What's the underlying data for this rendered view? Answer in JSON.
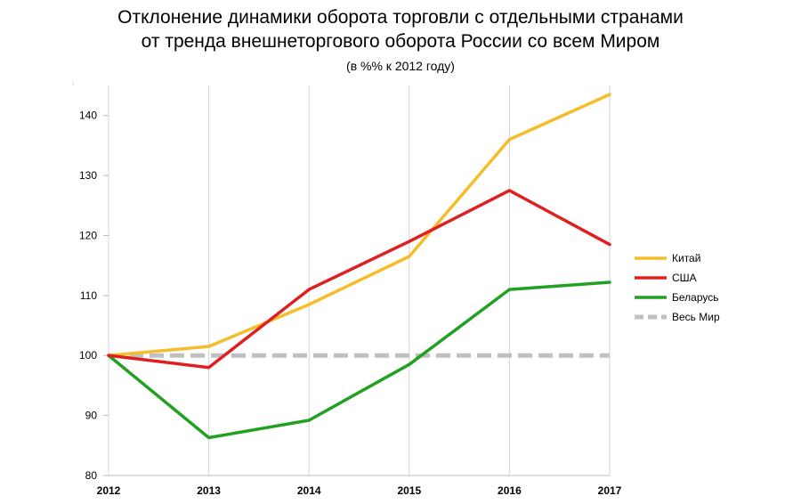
{
  "chart_data": {
    "type": "line",
    "title_line1": "Отклонение динамики оборота торговли с отдельными странами",
    "title_line2": "от тренда внешнеторгового оборота России со всем Миром",
    "subtitle": "(в %% к 2012 году)",
    "x": [
      "2012",
      "2013",
      "2014",
      "2015",
      "2016",
      "2017"
    ],
    "ylim": [
      80,
      145
    ],
    "yticks": [
      80,
      90,
      100,
      110,
      120,
      130,
      140
    ],
    "grid": "vertical",
    "legend_position": "right",
    "series": [
      {
        "name": "Китай",
        "color": "#f5bd2a",
        "dashed": false,
        "values": [
          100,
          101.5,
          108.5,
          116.5,
          136,
          143.5
        ]
      },
      {
        "name": "США",
        "color": "#e02020",
        "dashed": false,
        "values": [
          100,
          98,
          111,
          119,
          127.5,
          118.5
        ]
      },
      {
        "name": "Беларусь",
        "color": "#22a022",
        "dashed": false,
        "values": [
          100,
          86.3,
          89.2,
          98.5,
          111,
          112.2
        ]
      },
      {
        "name": "Весь Мир",
        "color": "#c0c0c0",
        "dashed": true,
        "values": [
          100,
          100,
          100,
          100,
          100,
          100
        ]
      }
    ]
  }
}
